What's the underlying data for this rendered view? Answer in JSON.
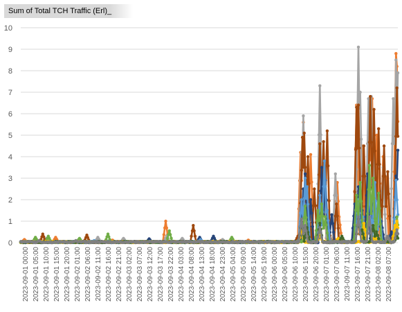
{
  "chart_data": {
    "type": "line",
    "title": "Sum of Total TCH Traffic (Erl)_",
    "ylim": [
      0,
      10
    ],
    "yticks": [
      0,
      1,
      2,
      3,
      4,
      5,
      6,
      7,
      8,
      9,
      10
    ],
    "grid": true,
    "legend": "none",
    "x_labels": [
      "2023-09-01 00:00",
      "2023-09-01 05:00",
      "2023-09-01 10:00",
      "2023-09-01 15:00",
      "2023-09-01 20:00",
      "2023-09-02 01:00",
      "2023-09-02 06:00",
      "2023-09-02 11:00",
      "2023-09-02 16:00",
      "2023-09-02 21:00",
      "2023-09-03 02:00",
      "2023-09-03 07:00",
      "2023-09-03 12:00",
      "2023-09-03 17:00",
      "2023-09-03 22:00",
      "2023-09-04 03:00",
      "2023-09-04 08:00",
      "2023-09-04 13:00",
      "2023-09-04 18:00",
      "2023-09-04 23:00",
      "2023-09-05 04:00",
      "2023-09-05 09:00",
      "2023-09-05 14:00",
      "2023-09-05 19:00",
      "2023-09-06 00:00",
      "2023-09-06 05:00",
      "2023-09-06 10:00",
      "2023-09-06 15:00",
      "2023-09-06 20:00",
      "2023-09-07 01:00",
      "2023-09-07 06:00",
      "2023-09-07 11:00",
      "2023-09-07 16:00",
      "2023-09-07 21:00",
      "2023-09-08 02:00",
      "2023-09-08 07:00"
    ],
    "series": [
      {
        "color": "#ED7D31",
        "spikes": [
          [
            4,
            0.15
          ],
          [
            38,
            0.25
          ],
          [
            100,
            0.12
          ],
          [
            158,
            1.0
          ],
          [
            218,
            0.1
          ],
          [
            248,
            0.12
          ],
          [
            305,
            4.2
          ],
          [
            308,
            5.6
          ],
          [
            316,
            4.1
          ],
          [
            326,
            4.5
          ],
          [
            330,
            3.2
          ],
          [
            345,
            2.8
          ],
          [
            347,
            1.2
          ],
          [
            366,
            6.4
          ],
          [
            372,
            4.5
          ],
          [
            380,
            5.6
          ],
          [
            383,
            6.7
          ],
          [
            388,
            5.0
          ],
          [
            395,
            4.0
          ],
          [
            398,
            3.0
          ],
          [
            409,
            8.8
          ],
          [
            410,
            8.2
          ]
        ]
      },
      {
        "color": "#A5A5A5",
        "spikes": [
          [
            28,
            0.2
          ],
          [
            84,
            0.25
          ],
          [
            112,
            0.2
          ],
          [
            159,
            0.3
          ],
          [
            176,
            0.2
          ],
          [
            220,
            0.15
          ],
          [
            306,
            4.2
          ],
          [
            308,
            5.9
          ],
          [
            326,
            7.3
          ],
          [
            330,
            4.0
          ],
          [
            343,
            3.2
          ],
          [
            368,
            9.1
          ],
          [
            370,
            7.0
          ],
          [
            379,
            6.7
          ],
          [
            382,
            6.8
          ],
          [
            384,
            4.7
          ],
          [
            395,
            3.5
          ],
          [
            406,
            6.7
          ],
          [
            409,
            8.5
          ],
          [
            411,
            7.9
          ]
        ]
      },
      {
        "color": "#9E480E",
        "spikes": [
          [
            2,
            0.05
          ],
          [
            24,
            0.4
          ],
          [
            72,
            0.35
          ],
          [
            188,
            0.8
          ],
          [
            302,
            0.3
          ],
          [
            307,
            4.9
          ],
          [
            309,
            5.1
          ],
          [
            313,
            4.0
          ],
          [
            320,
            2.5
          ],
          [
            326,
            4.6
          ],
          [
            330,
            4.7
          ],
          [
            334,
            5.2
          ],
          [
            344,
            1.8
          ],
          [
            366,
            6.3
          ],
          [
            368,
            6.4
          ],
          [
            374,
            4.5
          ],
          [
            381,
            6.8
          ],
          [
            385,
            6.2
          ],
          [
            390,
            5.3
          ],
          [
            396,
            4.5
          ],
          [
            400,
            3.3
          ],
          [
            409,
            4.2
          ],
          [
            410,
            7.2
          ],
          [
            411,
            4.7
          ]
        ]
      },
      {
        "color": "#264478",
        "spikes": [
          [
            140,
            0.18
          ],
          [
            195,
            0.25
          ],
          [
            210,
            0.3
          ],
          [
            308,
            2.5
          ],
          [
            310,
            3.2
          ],
          [
            316,
            2.0
          ],
          [
            328,
            3.5
          ],
          [
            332,
            2.9
          ],
          [
            339,
            1.3
          ],
          [
            364,
            1.8
          ],
          [
            368,
            2.6
          ],
          [
            372,
            1.5
          ],
          [
            378,
            3.2
          ],
          [
            384,
            2.7
          ],
          [
            390,
            2.0
          ],
          [
            393,
            1.0
          ],
          [
            404,
            0.5
          ],
          [
            409,
            3.1
          ],
          [
            411,
            4.3
          ]
        ]
      },
      {
        "color": "#5B9BD5",
        "spikes": [
          [
            80,
            0.1
          ],
          [
            196,
            0.15
          ],
          [
            306,
            2.0
          ],
          [
            310,
            3.0
          ],
          [
            312,
            2.6
          ],
          [
            326,
            2.2
          ],
          [
            331,
            3.8
          ],
          [
            334,
            1.5
          ],
          [
            368,
            2.0
          ],
          [
            373,
            1.2
          ],
          [
            380,
            2.6
          ],
          [
            386,
            2.8
          ],
          [
            391,
            1.6
          ],
          [
            409,
            2.9
          ],
          [
            411,
            1.3
          ]
        ]
      },
      {
        "color": "#70AD47",
        "spikes": [
          [
            16,
            0.25
          ],
          [
            30,
            0.3
          ],
          [
            64,
            0.2
          ],
          [
            95,
            0.4
          ],
          [
            162,
            0.55
          ],
          [
            230,
            0.25
          ],
          [
            310,
            1.7
          ],
          [
            324,
            1.5
          ],
          [
            328,
            1.8
          ],
          [
            332,
            1.2
          ],
          [
            366,
            2.2
          ],
          [
            370,
            2.8
          ],
          [
            380,
            3.6
          ],
          [
            384,
            3.0
          ],
          [
            390,
            2.3
          ],
          [
            410,
            1.2
          ]
        ]
      },
      {
        "color": "#FFC000",
        "spikes": [
          [
            306,
            0.6
          ],
          [
            326,
            0.4
          ],
          [
            346,
            0.2
          ],
          [
            374,
            0.9
          ],
          [
            386,
            0.3
          ],
          [
            408,
            0.8
          ],
          [
            410,
            1.0
          ]
        ]
      },
      {
        "color": "#43682B",
        "spikes": [
          [
            306,
            1.0
          ],
          [
            312,
            0.7
          ],
          [
            326,
            0.9
          ],
          [
            350,
            0.3
          ],
          [
            368,
            1.1
          ],
          [
            372,
            0.6
          ],
          [
            384,
            0.8
          ],
          [
            388,
            0.5
          ],
          [
            410,
            0.3
          ]
        ]
      },
      {
        "color": "#7F7F7F",
        "spikes": [
          [
            3,
            0.05
          ],
          [
            20,
            0.1
          ],
          [
            60,
            0.1
          ],
          [
            120,
            0.05
          ],
          [
            306,
            1.1
          ],
          [
            310,
            0.8
          ],
          [
            326,
            0.7
          ],
          [
            368,
            1.2
          ],
          [
            380,
            1.2
          ],
          [
            400,
            0.3
          ],
          [
            410,
            0.6
          ]
        ]
      }
    ]
  }
}
